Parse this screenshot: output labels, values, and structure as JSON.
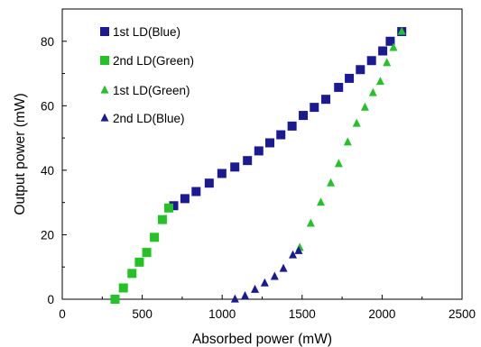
{
  "chart_data": {
    "type": "scatter",
    "title": "",
    "xlabel": "Absorbed power (mW)",
    "ylabel": "Output power (mW)",
    "xlim": [
      0,
      2500
    ],
    "ylim": [
      0,
      90
    ],
    "x_ticks": [
      0,
      500,
      1000,
      1500,
      2000,
      2500
    ],
    "x_tick_labels": [
      "0",
      "500",
      "1000",
      "1500",
      "2000",
      "2500"
    ],
    "y_ticks": [
      0,
      20,
      40,
      60,
      80
    ],
    "y_tick_labels": [
      "0",
      "20",
      "40",
      "60",
      "80"
    ],
    "grid": false,
    "legend_position": "top-left",
    "series": [
      {
        "name": "1st LD(Blue)",
        "marker": "square",
        "color": "#1a1a96",
        "x": [
          697,
          767,
          837,
          919,
          998,
          1079,
          1158,
          1229,
          1298,
          1367,
          1437,
          1507,
          1576,
          1648,
          1728,
          1795,
          1864,
          1934,
          2004,
          2051,
          2123
        ],
        "y": [
          29.0,
          31.2,
          33.4,
          36.0,
          39.0,
          41.0,
          43.0,
          46.0,
          48.5,
          51.0,
          53.7,
          57.0,
          59.5,
          62.0,
          65.7,
          68.5,
          71.2,
          74.0,
          77.0,
          80.0,
          83.0
        ]
      },
      {
        "name": "2nd LD(Green)",
        "marker": "square",
        "color": "#22c425",
        "x": [
          330,
          382,
          436,
          482,
          528,
          576,
          626,
          666
        ],
        "y": [
          0.0,
          3.5,
          8.0,
          11.5,
          14.5,
          19.2,
          24.7,
          28.3
        ]
      },
      {
        "name": "1st LD(Green)",
        "marker": "triangle",
        "color": "#22c425",
        "x": [
          1485,
          1554,
          1617,
          1679,
          1729,
          1785,
          1841,
          1893,
          1943,
          1989,
          2030,
          2071,
          2123
        ],
        "y": [
          16.0,
          23.5,
          30.0,
          36.0,
          42.0,
          48.7,
          54.5,
          59.5,
          64.0,
          67.5,
          73.3,
          78.0,
          83.0
        ]
      },
      {
        "name": "2nd LD(Blue)",
        "marker": "triangle",
        "color": "#1a1a96",
        "x": [
          1080,
          1143,
          1205,
          1266,
          1328,
          1383,
          1442,
          1478
        ],
        "y": [
          0.0,
          1.0,
          3.0,
          5.0,
          7.0,
          9.5,
          13.7,
          15.0
        ]
      }
    ]
  }
}
